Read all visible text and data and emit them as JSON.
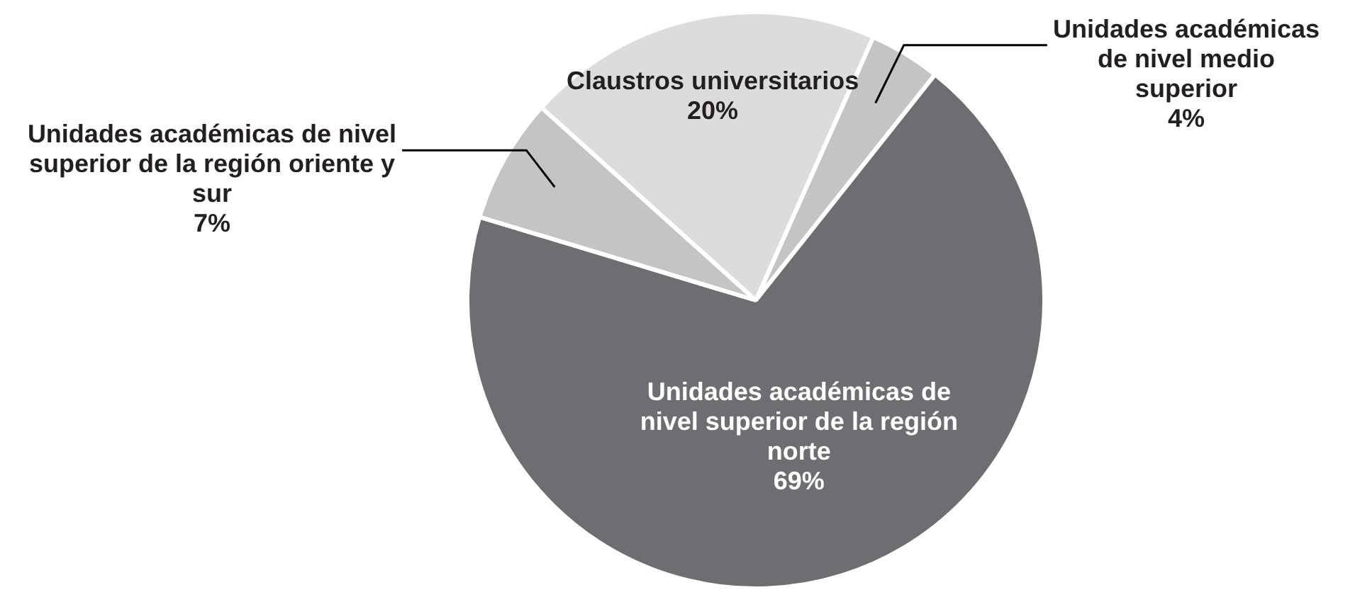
{
  "chart_data": {
    "type": "pie",
    "categories": [
      "Unidades académicas de nivel medio superior",
      "Unidades académicas de nivel superior de la región norte",
      "Unidades académicas de nivel superior de la región oriente y sur",
      "Claustros universitarios"
    ],
    "values": [
      4,
      69,
      7,
      20
    ],
    "value_labels": [
      "4%",
      "69%",
      "7%",
      "20%"
    ],
    "colors": [
      "#c4c4c4",
      "#6d6e71",
      "#c4c4c4",
      "#dcdcdc"
    ]
  }
}
